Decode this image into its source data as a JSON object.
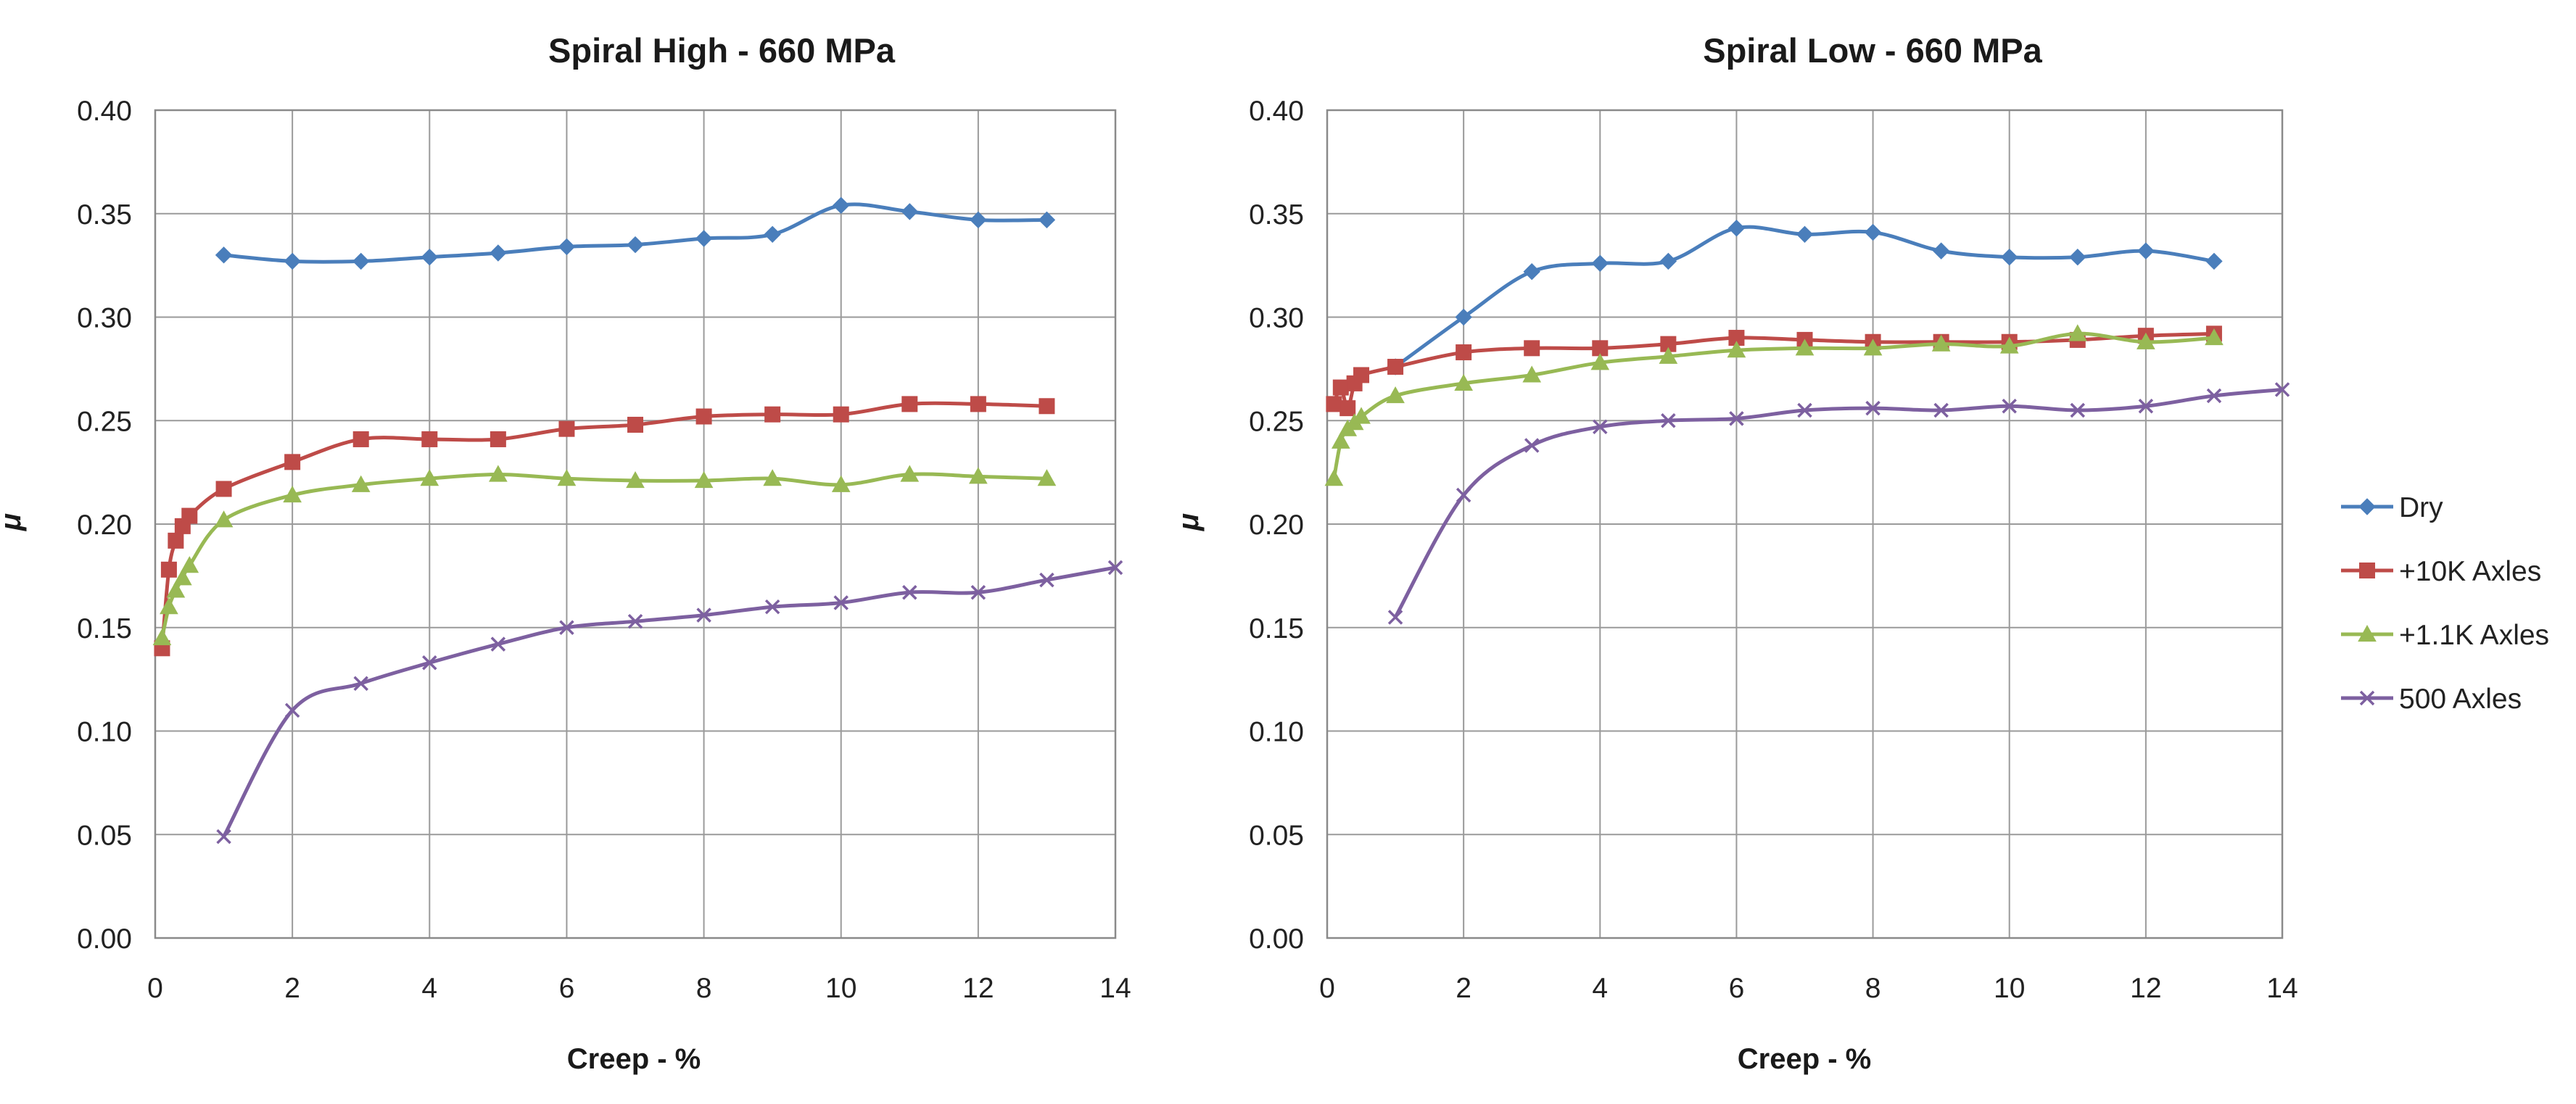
{
  "colors": {
    "dry": "#4a7ebb",
    "axles_10k": "#be4b48",
    "axles_1_1k": "#98b954",
    "axles_500": "#7d60a0",
    "grid": "#9a9a9a"
  },
  "chart_data": [
    {
      "type": "line",
      "title": "Spiral High - 660 MPa",
      "xlabel": "Creep - %",
      "ylabel": "μ",
      "xlim": [
        0,
        14
      ],
      "ylim": [
        0,
        0.4
      ],
      "xticks": [
        "0",
        "2",
        "4",
        "6",
        "8",
        "10",
        "12",
        "14"
      ],
      "yticks": [
        "0.00",
        "0.05",
        "0.10",
        "0.15",
        "0.20",
        "0.25",
        "0.30",
        "0.35",
        "0.40"
      ],
      "grid": true,
      "series": [
        {
          "name": "Dry",
          "marker": "diamond",
          "x": [
            1,
            2,
            3,
            4,
            5,
            6,
            7,
            8,
            9,
            10,
            11,
            12,
            13
          ],
          "y": [
            0.33,
            0.327,
            0.327,
            0.329,
            0.331,
            0.334,
            0.335,
            0.338,
            0.34,
            0.354,
            0.351,
            0.347,
            0.347
          ]
        },
        {
          "name": "+10K Axles",
          "marker": "square",
          "x": [
            0.1,
            0.2,
            0.3,
            0.4,
            0.5,
            1,
            2,
            3,
            4,
            5,
            6,
            7,
            8,
            9,
            10,
            11,
            12,
            13
          ],
          "y": [
            0.14,
            0.178,
            0.192,
            0.199,
            0.204,
            0.217,
            0.23,
            0.241,
            0.241,
            0.241,
            0.246,
            0.248,
            0.252,
            0.253,
            0.253,
            0.258,
            0.258,
            0.257
          ]
        },
        {
          "name": "+1.1K Axles",
          "marker": "triangle",
          "x": [
            0.1,
            0.2,
            0.3,
            0.4,
            0.5,
            1,
            2,
            3,
            4,
            5,
            6,
            7,
            8,
            9,
            10,
            11,
            12,
            13
          ],
          "y": [
            0.145,
            0.16,
            0.168,
            0.174,
            0.18,
            0.202,
            0.214,
            0.219,
            0.222,
            0.224,
            0.222,
            0.221,
            0.221,
            0.222,
            0.219,
            0.224,
            0.223,
            0.222
          ]
        },
        {
          "name": "500 Axles",
          "marker": "x",
          "x": [
            1,
            2,
            3,
            4,
            5,
            6,
            7,
            8,
            9,
            10,
            11,
            12,
            13,
            14
          ],
          "y": [
            0.049,
            0.11,
            0.123,
            0.133,
            0.142,
            0.15,
            0.153,
            0.156,
            0.16,
            0.162,
            0.167,
            0.167,
            0.173,
            0.179
          ]
        }
      ]
    },
    {
      "type": "line",
      "title": "Spiral Low - 660 MPa",
      "xlabel": "Creep - %",
      "ylabel": "μ",
      "xlim": [
        0,
        14
      ],
      "ylim": [
        0,
        0.4
      ],
      "xticks": [
        "0",
        "2",
        "4",
        "6",
        "8",
        "10",
        "12",
        "14"
      ],
      "yticks": [
        "0.00",
        "0.05",
        "0.10",
        "0.15",
        "0.20",
        "0.25",
        "0.30",
        "0.35",
        "0.40"
      ],
      "grid": true,
      "legend": "right",
      "series": [
        {
          "name": "Dry",
          "marker": "diamond",
          "x": [
            1,
            2,
            3,
            4,
            5,
            6,
            7,
            8,
            9,
            10,
            11,
            12,
            13
          ],
          "y": [
            0.276,
            0.3,
            0.322,
            0.326,
            0.327,
            0.343,
            0.34,
            0.341,
            0.332,
            0.329,
            0.329,
            0.332,
            0.327
          ]
        },
        {
          "name": "+10K Axles",
          "marker": "square",
          "x": [
            0.1,
            0.2,
            0.3,
            0.4,
            0.5,
            1,
            2,
            3,
            4,
            5,
            6,
            7,
            8,
            9,
            10,
            11,
            12,
            13
          ],
          "y": [
            0.258,
            0.266,
            0.256,
            0.268,
            0.272,
            0.276,
            0.283,
            0.285,
            0.285,
            0.287,
            0.29,
            0.289,
            0.288,
            0.288,
            0.288,
            0.289,
            0.291,
            0.292
          ]
        },
        {
          "name": "+1.1K Axles",
          "marker": "triangle",
          "x": [
            0.1,
            0.2,
            0.3,
            0.4,
            0.5,
            1,
            2,
            3,
            4,
            5,
            6,
            7,
            8,
            9,
            10,
            11,
            12,
            13
          ],
          "y": [
            0.222,
            0.24,
            0.246,
            0.249,
            0.252,
            0.262,
            0.268,
            0.272,
            0.278,
            0.281,
            0.284,
            0.285,
            0.285,
            0.287,
            0.286,
            0.292,
            0.288,
            0.29
          ]
        },
        {
          "name": "500 Axles",
          "marker": "x",
          "x": [
            1,
            2,
            3,
            4,
            5,
            6,
            7,
            8,
            9,
            10,
            11,
            12,
            13,
            14
          ],
          "y": [
            0.155,
            0.214,
            0.238,
            0.247,
            0.25,
            0.251,
            0.255,
            0.256,
            0.255,
            0.257,
            0.255,
            0.257,
            0.262,
            0.265
          ]
        }
      ]
    }
  ]
}
